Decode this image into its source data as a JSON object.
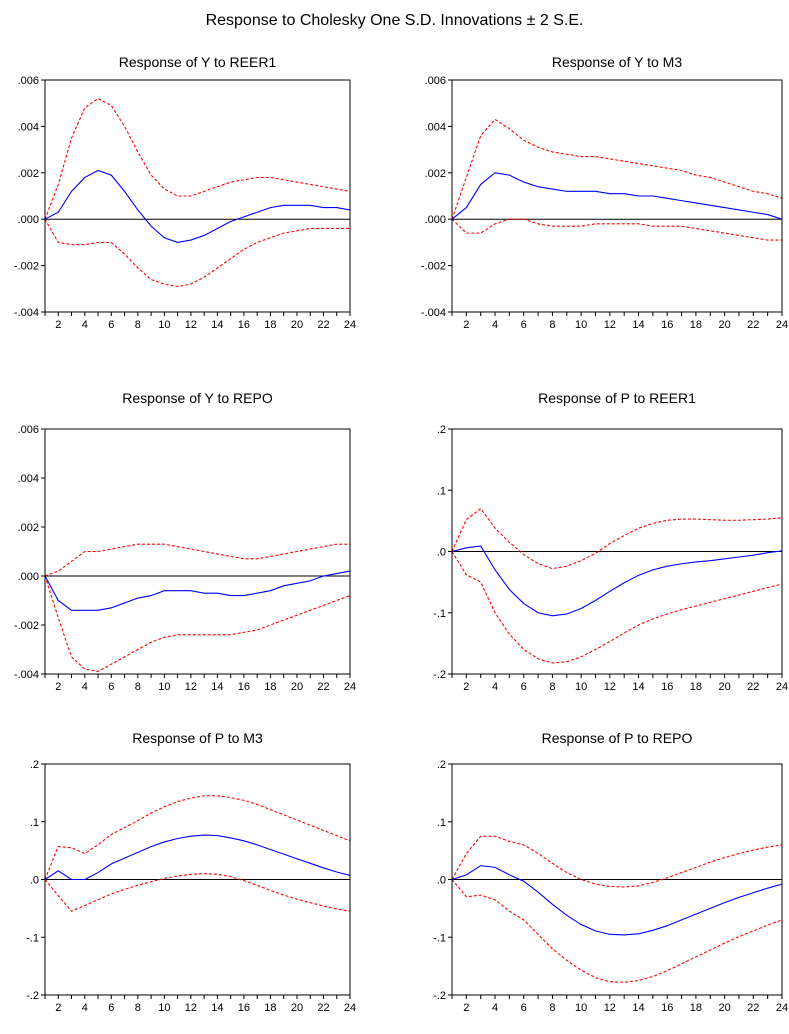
{
  "figure_title": "Response to Cholesky One S.D. Innovations ± 2 S.E.",
  "colors": {
    "response": "#0000ff",
    "bands": "#ff0000",
    "zero_line": "#000000",
    "frame": "#000000"
  },
  "chart_data": [
    {
      "type": "line",
      "title": "Response of Y to REER1",
      "x": [
        1,
        2,
        3,
        4,
        5,
        6,
        7,
        8,
        9,
        10,
        11,
        12,
        13,
        14,
        15,
        16,
        17,
        18,
        19,
        20,
        21,
        22,
        23,
        24
      ],
      "xticks": [
        "2",
        "4",
        "6",
        "8",
        "10",
        "12",
        "14",
        "16",
        "18",
        "20",
        "22",
        "24"
      ],
      "ylim": [
        -0.004,
        0.006
      ],
      "yticks": [
        -0.004,
        -0.002,
        0.0,
        0.002,
        0.004,
        0.006
      ],
      "ytick_labels": [
        "-.004",
        "-.002",
        ".000",
        ".002",
        ".004",
        ".006"
      ],
      "response": [
        0.0,
        0.0003,
        0.0012,
        0.0018,
        0.0021,
        0.0019,
        0.0012,
        0.0004,
        -0.0003,
        -0.0008,
        -0.001,
        -0.0009,
        -0.0007,
        -0.0004,
        -0.0001,
        0.0001,
        0.0003,
        0.0005,
        0.0006,
        0.0006,
        0.0006,
        0.0005,
        0.0005,
        0.0004
      ],
      "upper": [
        0.0,
        0.0015,
        0.0035,
        0.0048,
        0.0052,
        0.0049,
        0.004,
        0.0029,
        0.0019,
        0.0013,
        0.001,
        0.001,
        0.0012,
        0.0014,
        0.0016,
        0.0017,
        0.0018,
        0.0018,
        0.0017,
        0.0016,
        0.0015,
        0.0014,
        0.0013,
        0.0012
      ],
      "lower": [
        0.0,
        -0.001,
        -0.0011,
        -0.0011,
        -0.001,
        -0.001,
        -0.0015,
        -0.0021,
        -0.0026,
        -0.0028,
        -0.0029,
        -0.0028,
        -0.0025,
        -0.0021,
        -0.0017,
        -0.0013,
        -0.001,
        -0.0008,
        -0.0006,
        -0.0005,
        -0.0004,
        -0.0004,
        -0.0004,
        -0.0004
      ]
    },
    {
      "type": "line",
      "title": "Response of Y to M3",
      "x": [
        1,
        2,
        3,
        4,
        5,
        6,
        7,
        8,
        9,
        10,
        11,
        12,
        13,
        14,
        15,
        16,
        17,
        18,
        19,
        20,
        21,
        22,
        23,
        24
      ],
      "xticks": [
        "2",
        "4",
        "6",
        "8",
        "10",
        "12",
        "14",
        "16",
        "18",
        "20",
        "22",
        "24"
      ],
      "ylim": [
        -0.004,
        0.006
      ],
      "yticks": [
        -0.004,
        -0.002,
        0.0,
        0.002,
        0.004,
        0.006
      ],
      "ytick_labels": [
        "-.004",
        "-.002",
        ".000",
        ".002",
        ".004",
        ".006"
      ],
      "response": [
        0.0,
        0.0005,
        0.0015,
        0.002,
        0.0019,
        0.0016,
        0.0014,
        0.0013,
        0.0012,
        0.0012,
        0.0012,
        0.0011,
        0.0011,
        0.001,
        0.001,
        0.0009,
        0.0008,
        0.0007,
        0.0006,
        0.0005,
        0.0004,
        0.0003,
        0.0002,
        0.0
      ],
      "upper": [
        0.0,
        0.0018,
        0.0036,
        0.0043,
        0.0039,
        0.0034,
        0.0031,
        0.0029,
        0.0028,
        0.0027,
        0.0027,
        0.0026,
        0.0025,
        0.0024,
        0.0023,
        0.0022,
        0.0021,
        0.0019,
        0.0018,
        0.0016,
        0.0014,
        0.0012,
        0.0011,
        0.0009
      ],
      "lower": [
        0.0,
        -0.0006,
        -0.0006,
        -0.0002,
        0.0,
        0.0,
        -0.0002,
        -0.0003,
        -0.0003,
        -0.0003,
        -0.0002,
        -0.0002,
        -0.0002,
        -0.0002,
        -0.0003,
        -0.0003,
        -0.0003,
        -0.0004,
        -0.0005,
        -0.0006,
        -0.0007,
        -0.0008,
        -0.0009,
        -0.0009
      ]
    },
    {
      "type": "line",
      "title": "Response of Y to REPO",
      "x": [
        1,
        2,
        3,
        4,
        5,
        6,
        7,
        8,
        9,
        10,
        11,
        12,
        13,
        14,
        15,
        16,
        17,
        18,
        19,
        20,
        21,
        22,
        23,
        24
      ],
      "xticks": [
        "2",
        "4",
        "6",
        "8",
        "10",
        "12",
        "14",
        "16",
        "18",
        "20",
        "22",
        "24"
      ],
      "ylim": [
        -0.004,
        0.006
      ],
      "yticks": [
        -0.004,
        -0.002,
        0.0,
        0.002,
        0.004,
        0.006
      ],
      "ytick_labels": [
        "-.004",
        "-.002",
        ".000",
        ".002",
        ".004",
        ".006"
      ],
      "response": [
        0.0,
        -0.001,
        -0.0014,
        -0.0014,
        -0.0014,
        -0.0013,
        -0.0011,
        -0.0009,
        -0.0008,
        -0.0006,
        -0.0006,
        -0.0006,
        -0.0007,
        -0.0007,
        -0.0008,
        -0.0008,
        -0.0007,
        -0.0006,
        -0.0004,
        -0.0003,
        -0.0002,
        0.0,
        0.0001,
        0.0002
      ],
      "upper": [
        0.0,
        0.0002,
        0.0006,
        0.001,
        0.001,
        0.0011,
        0.0012,
        0.0013,
        0.0013,
        0.0013,
        0.0012,
        0.0011,
        0.001,
        0.0009,
        0.0008,
        0.0007,
        0.0007,
        0.0008,
        0.0009,
        0.001,
        0.0011,
        0.0012,
        0.0013,
        0.0013
      ],
      "lower": [
        0.0,
        -0.0017,
        -0.0033,
        -0.0038,
        -0.0039,
        -0.0036,
        -0.0033,
        -0.003,
        -0.0027,
        -0.0025,
        -0.0024,
        -0.0024,
        -0.0024,
        -0.0024,
        -0.0024,
        -0.0023,
        -0.0022,
        -0.002,
        -0.0018,
        -0.0016,
        -0.0014,
        -0.0012,
        -0.001,
        -0.0008
      ]
    },
    {
      "type": "line",
      "title": "Response of P to REER1",
      "x": [
        1,
        2,
        3,
        4,
        5,
        6,
        7,
        8,
        9,
        10,
        11,
        12,
        13,
        14,
        15,
        16,
        17,
        18,
        19,
        20,
        21,
        22,
        23,
        24
      ],
      "xticks": [
        "2",
        "4",
        "6",
        "8",
        "10",
        "12",
        "14",
        "16",
        "18",
        "20",
        "22",
        "24"
      ],
      "ylim": [
        -0.2,
        0.2
      ],
      "yticks": [
        -0.2,
        -0.1,
        0.0,
        0.1,
        0.2
      ],
      "ytick_labels": [
        "-.2",
        "-.1",
        ".0",
        ".1",
        ".2"
      ],
      "response": [
        0.0,
        0.006,
        0.009,
        -0.03,
        -0.062,
        -0.085,
        -0.1,
        -0.105,
        -0.102,
        -0.093,
        -0.08,
        -0.065,
        -0.051,
        -0.039,
        -0.03,
        -0.024,
        -0.02,
        -0.017,
        -0.015,
        -0.012,
        -0.009,
        -0.006,
        -0.002,
        0.001
      ],
      "upper": [
        0.0,
        0.052,
        0.07,
        0.038,
        0.015,
        -0.005,
        -0.02,
        -0.028,
        -0.024,
        -0.015,
        -0.003,
        0.013,
        0.026,
        0.038,
        0.046,
        0.051,
        0.053,
        0.053,
        0.052,
        0.051,
        0.051,
        0.052,
        0.053,
        0.055
      ],
      "lower": [
        0.0,
        -0.038,
        -0.05,
        -0.1,
        -0.135,
        -0.16,
        -0.175,
        -0.182,
        -0.18,
        -0.172,
        -0.16,
        -0.147,
        -0.133,
        -0.12,
        -0.11,
        -0.102,
        -0.095,
        -0.089,
        -0.083,
        -0.077,
        -0.071,
        -0.065,
        -0.059,
        -0.053
      ]
    },
    {
      "type": "line",
      "title": "Response of P to M3",
      "x": [
        1,
        2,
        3,
        4,
        5,
        6,
        7,
        8,
        9,
        10,
        11,
        12,
        13,
        14,
        15,
        16,
        17,
        18,
        19,
        20,
        21,
        22,
        23,
        24
      ],
      "xticks": [
        "2",
        "4",
        "6",
        "8",
        "10",
        "12",
        "14",
        "16",
        "18",
        "20",
        "22",
        "24"
      ],
      "ylim": [
        -0.2,
        0.2
      ],
      "yticks": [
        -0.2,
        -0.1,
        0.0,
        0.1,
        0.2
      ],
      "ytick_labels": [
        "-.2",
        "-.1",
        ".0",
        ".1",
        ".2"
      ],
      "response": [
        0.0,
        0.015,
        0.0,
        0.0,
        0.012,
        0.027,
        0.037,
        0.047,
        0.057,
        0.065,
        0.071,
        0.075,
        0.077,
        0.076,
        0.072,
        0.067,
        0.06,
        0.052,
        0.044,
        0.036,
        0.028,
        0.02,
        0.013,
        0.007
      ],
      "upper": [
        0.0,
        0.057,
        0.055,
        0.045,
        0.06,
        0.078,
        0.09,
        0.102,
        0.115,
        0.126,
        0.135,
        0.141,
        0.145,
        0.145,
        0.142,
        0.137,
        0.13,
        0.121,
        0.112,
        0.103,
        0.094,
        0.085,
        0.076,
        0.067
      ],
      "lower": [
        0.0,
        -0.028,
        -0.055,
        -0.045,
        -0.035,
        -0.025,
        -0.017,
        -0.01,
        -0.004,
        0.002,
        0.006,
        0.009,
        0.01,
        0.009,
        0.005,
        -0.002,
        -0.01,
        -0.019,
        -0.027,
        -0.034,
        -0.04,
        -0.046,
        -0.051,
        -0.055
      ]
    },
    {
      "type": "line",
      "title": "Response of P to REPO",
      "x": [
        1,
        2,
        3,
        4,
        5,
        6,
        7,
        8,
        9,
        10,
        11,
        12,
        13,
        14,
        15,
        16,
        17,
        18,
        19,
        20,
        21,
        22,
        23,
        24
      ],
      "xticks": [
        "2",
        "4",
        "6",
        "8",
        "10",
        "12",
        "14",
        "16",
        "18",
        "20",
        "22",
        "24"
      ],
      "ylim": [
        -0.2,
        0.2
      ],
      "yticks": [
        -0.2,
        -0.1,
        0.0,
        0.1,
        0.2
      ],
      "ytick_labels": [
        "-.2",
        "-.1",
        ".0",
        ".1",
        ".2"
      ],
      "response": [
        0.0,
        0.008,
        0.024,
        0.021,
        0.008,
        -0.003,
        -0.022,
        -0.043,
        -0.062,
        -0.078,
        -0.089,
        -0.095,
        -0.096,
        -0.094,
        -0.088,
        -0.08,
        -0.07,
        -0.06,
        -0.05,
        -0.04,
        -0.031,
        -0.023,
        -0.015,
        -0.008
      ],
      "upper": [
        0.0,
        0.045,
        0.075,
        0.075,
        0.066,
        0.06,
        0.045,
        0.028,
        0.012,
        0.0,
        -0.008,
        -0.012,
        -0.013,
        -0.011,
        -0.005,
        0.003,
        0.012,
        0.021,
        0.03,
        0.038,
        0.045,
        0.051,
        0.056,
        0.06
      ],
      "lower": [
        0.0,
        -0.03,
        -0.027,
        -0.035,
        -0.055,
        -0.07,
        -0.095,
        -0.12,
        -0.14,
        -0.157,
        -0.17,
        -0.177,
        -0.178,
        -0.175,
        -0.168,
        -0.158,
        -0.146,
        -0.134,
        -0.122,
        -0.11,
        -0.099,
        -0.089,
        -0.079,
        -0.07
      ]
    }
  ]
}
